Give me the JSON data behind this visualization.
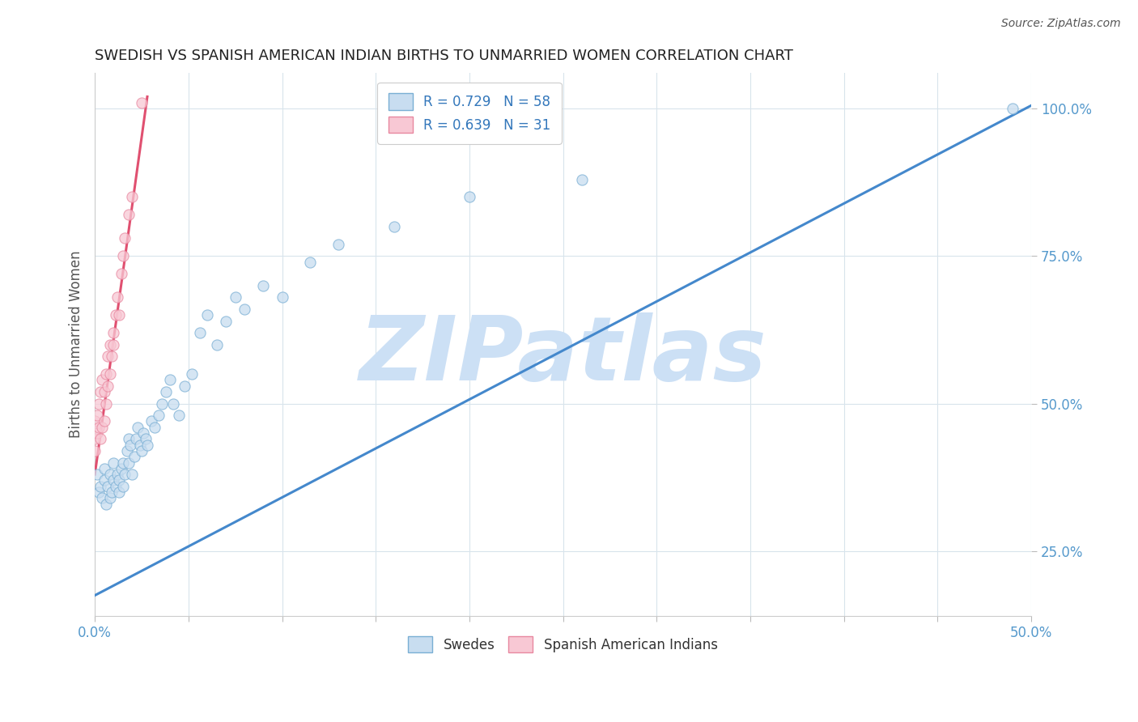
{
  "title": "SWEDISH VS SPANISH AMERICAN INDIAN BIRTHS TO UNMARRIED WOMEN CORRELATION CHART",
  "source": "Source: ZipAtlas.com",
  "ylabel": "Births to Unmarried Women",
  "xmin": 0.0,
  "xmax": 0.5,
  "ymin": 0.14,
  "ymax": 1.06,
  "x_ticks": [
    0.0,
    0.05,
    0.1,
    0.15,
    0.2,
    0.25,
    0.3,
    0.35,
    0.4,
    0.45,
    0.5
  ],
  "x_tick_labels": [
    "0.0%",
    "",
    "",
    "",
    "",
    "",
    "",
    "",
    "",
    "",
    "50.0%"
  ],
  "y_ticks": [
    0.25,
    0.5,
    0.75,
    1.0
  ],
  "y_tick_labels": [
    "25.0%",
    "50.0%",
    "75.0%",
    "100.0%"
  ],
  "legend_R_entries": [
    {
      "label": "R = 0.729   N = 58",
      "color": "#a8c4e0"
    },
    {
      "label": "R = 0.639   N = 31",
      "color": "#f4a0b0"
    }
  ],
  "blue_scatter_x": [
    0.001,
    0.002,
    0.003,
    0.004,
    0.005,
    0.005,
    0.006,
    0.007,
    0.008,
    0.008,
    0.009,
    0.01,
    0.01,
    0.011,
    0.012,
    0.013,
    0.013,
    0.014,
    0.015,
    0.015,
    0.016,
    0.017,
    0.018,
    0.018,
    0.019,
    0.02,
    0.021,
    0.022,
    0.023,
    0.024,
    0.025,
    0.026,
    0.027,
    0.028,
    0.03,
    0.032,
    0.034,
    0.036,
    0.038,
    0.04,
    0.042,
    0.045,
    0.048,
    0.052,
    0.056,
    0.06,
    0.065,
    0.07,
    0.075,
    0.08,
    0.09,
    0.1,
    0.115,
    0.13,
    0.16,
    0.2,
    0.26,
    0.49
  ],
  "blue_scatter_y": [
    0.38,
    0.35,
    0.36,
    0.34,
    0.37,
    0.39,
    0.33,
    0.36,
    0.34,
    0.38,
    0.35,
    0.37,
    0.4,
    0.36,
    0.38,
    0.35,
    0.37,
    0.39,
    0.36,
    0.4,
    0.38,
    0.42,
    0.4,
    0.44,
    0.43,
    0.38,
    0.41,
    0.44,
    0.46,
    0.43,
    0.42,
    0.45,
    0.44,
    0.43,
    0.47,
    0.46,
    0.48,
    0.5,
    0.52,
    0.54,
    0.5,
    0.48,
    0.53,
    0.55,
    0.62,
    0.65,
    0.6,
    0.64,
    0.68,
    0.66,
    0.7,
    0.68,
    0.74,
    0.77,
    0.8,
    0.85,
    0.88,
    1.0
  ],
  "pink_scatter_x": [
    0.0,
    0.0,
    0.0,
    0.001,
    0.001,
    0.002,
    0.002,
    0.003,
    0.003,
    0.004,
    0.004,
    0.005,
    0.005,
    0.006,
    0.006,
    0.007,
    0.007,
    0.008,
    0.008,
    0.009,
    0.01,
    0.01,
    0.011,
    0.012,
    0.013,
    0.014,
    0.015,
    0.016,
    0.018,
    0.02,
    0.025
  ],
  "pink_scatter_y": [
    0.42,
    0.44,
    0.47,
    0.45,
    0.48,
    0.46,
    0.5,
    0.44,
    0.52,
    0.46,
    0.54,
    0.47,
    0.52,
    0.5,
    0.55,
    0.53,
    0.58,
    0.55,
    0.6,
    0.58,
    0.6,
    0.62,
    0.65,
    0.68,
    0.65,
    0.72,
    0.75,
    0.78,
    0.82,
    0.85,
    1.01
  ],
  "blue_line_x": [
    0.0,
    0.5
  ],
  "blue_line_y": [
    0.175,
    1.005
  ],
  "pink_line_x": [
    0.0,
    0.028
  ],
  "pink_line_y": [
    0.38,
    1.02
  ],
  "scatter_alpha": 0.75,
  "scatter_size": 90,
  "blue_color": "#7aafd4",
  "blue_fill": "#c8ddf0",
  "pink_color": "#e888a0",
  "pink_fill": "#f8c8d4",
  "line_blue": "#4488cc",
  "line_pink": "#e05070",
  "watermark": "ZIPatlas",
  "watermark_color": "#cce0f5",
  "background_color": "#ffffff",
  "grid_color": "#d8e4ec"
}
